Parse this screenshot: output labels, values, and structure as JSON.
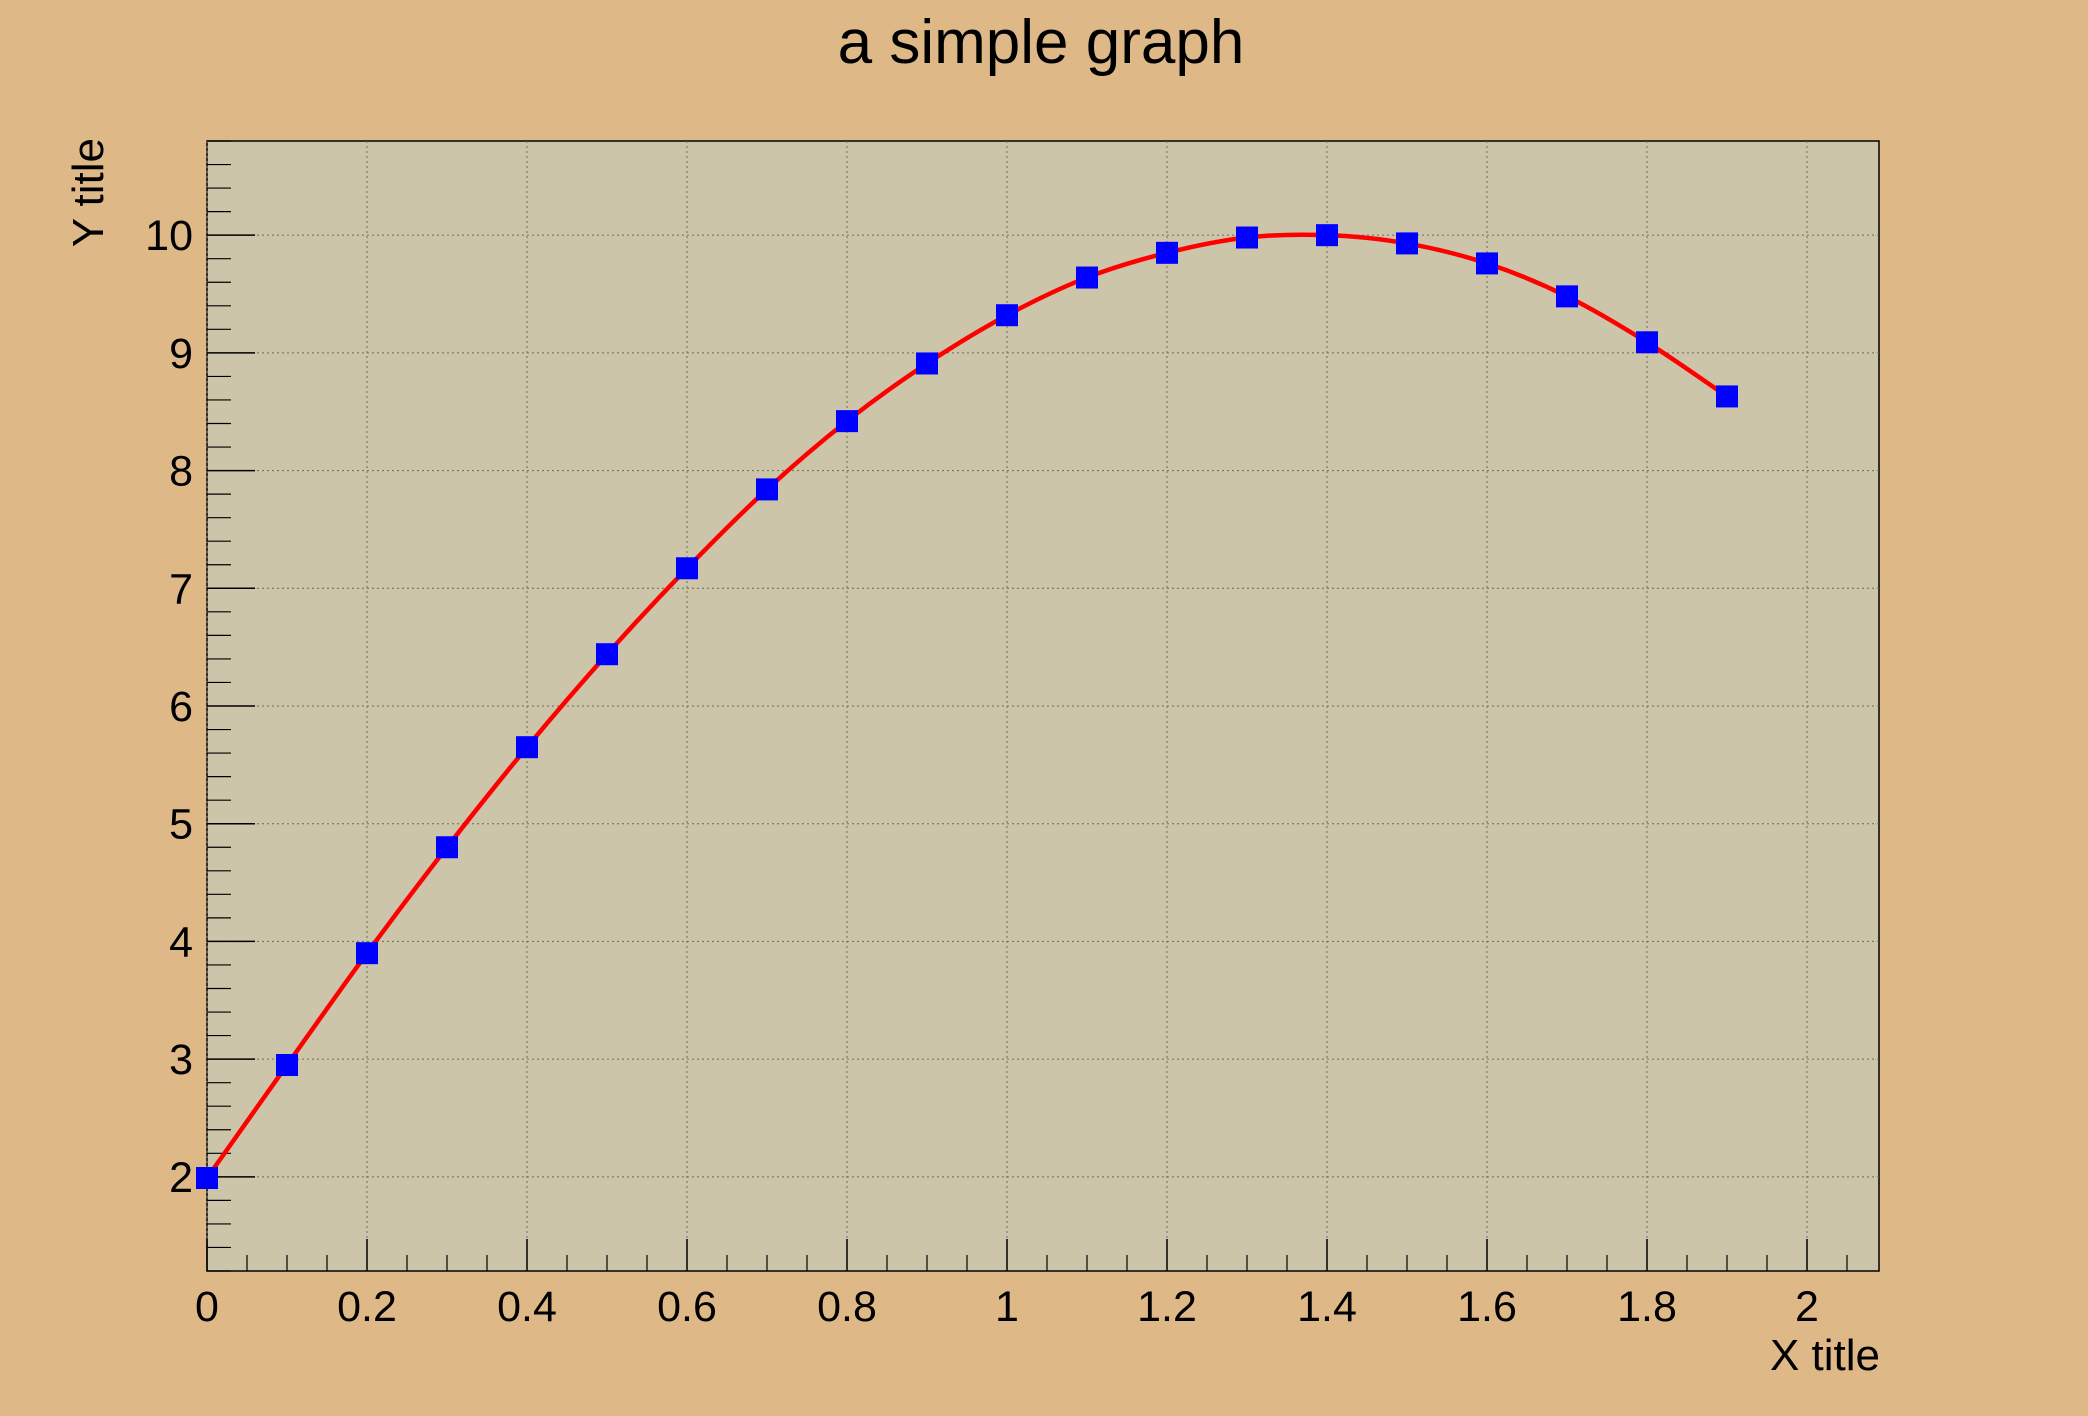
{
  "colors": {
    "canvas_background": "#deb887",
    "plot_background": "#ccc5a9",
    "line": "#ff0000",
    "marker": "#0000ff",
    "grid": "#6b6b5a",
    "axis": "#000000"
  },
  "chart_data": {
    "type": "line",
    "title": "a simple graph",
    "xlabel": "X title",
    "ylabel": "Y title",
    "xlim": [
      0,
      2.09
    ],
    "ylim": [
      1.2,
      10.8
    ],
    "grid": true,
    "marker": "square",
    "smooth": true,
    "x_ticks": [
      0,
      0.2,
      0.4,
      0.6,
      0.8,
      1,
      1.2,
      1.4,
      1.6,
      1.8,
      2
    ],
    "x_tick_labels": [
      "0",
      "0.2",
      "0.4",
      "0.6",
      "0.8",
      "1",
      "1.2",
      "1.4",
      "1.6",
      "1.8",
      "2"
    ],
    "y_ticks": [
      2,
      3,
      4,
      5,
      6,
      7,
      8,
      9,
      10
    ],
    "y_tick_labels": [
      "2",
      "3",
      "4",
      "5",
      "6",
      "7",
      "8",
      "9",
      "10"
    ],
    "series": [
      {
        "x": [
          0,
          0.1,
          0.2,
          0.3,
          0.4,
          0.5,
          0.6,
          0.7,
          0.8,
          0.9,
          1.0,
          1.1,
          1.2,
          1.3,
          1.4,
          1.5,
          1.6,
          1.7,
          1.8,
          1.9
        ],
        "y": [
          1.99,
          2.95,
          3.9,
          4.8,
          5.65,
          6.44,
          7.17,
          7.84,
          8.42,
          8.91,
          9.32,
          9.64,
          9.85,
          9.98,
          10.0,
          9.93,
          9.76,
          9.48,
          9.09,
          8.63
        ]
      }
    ]
  }
}
